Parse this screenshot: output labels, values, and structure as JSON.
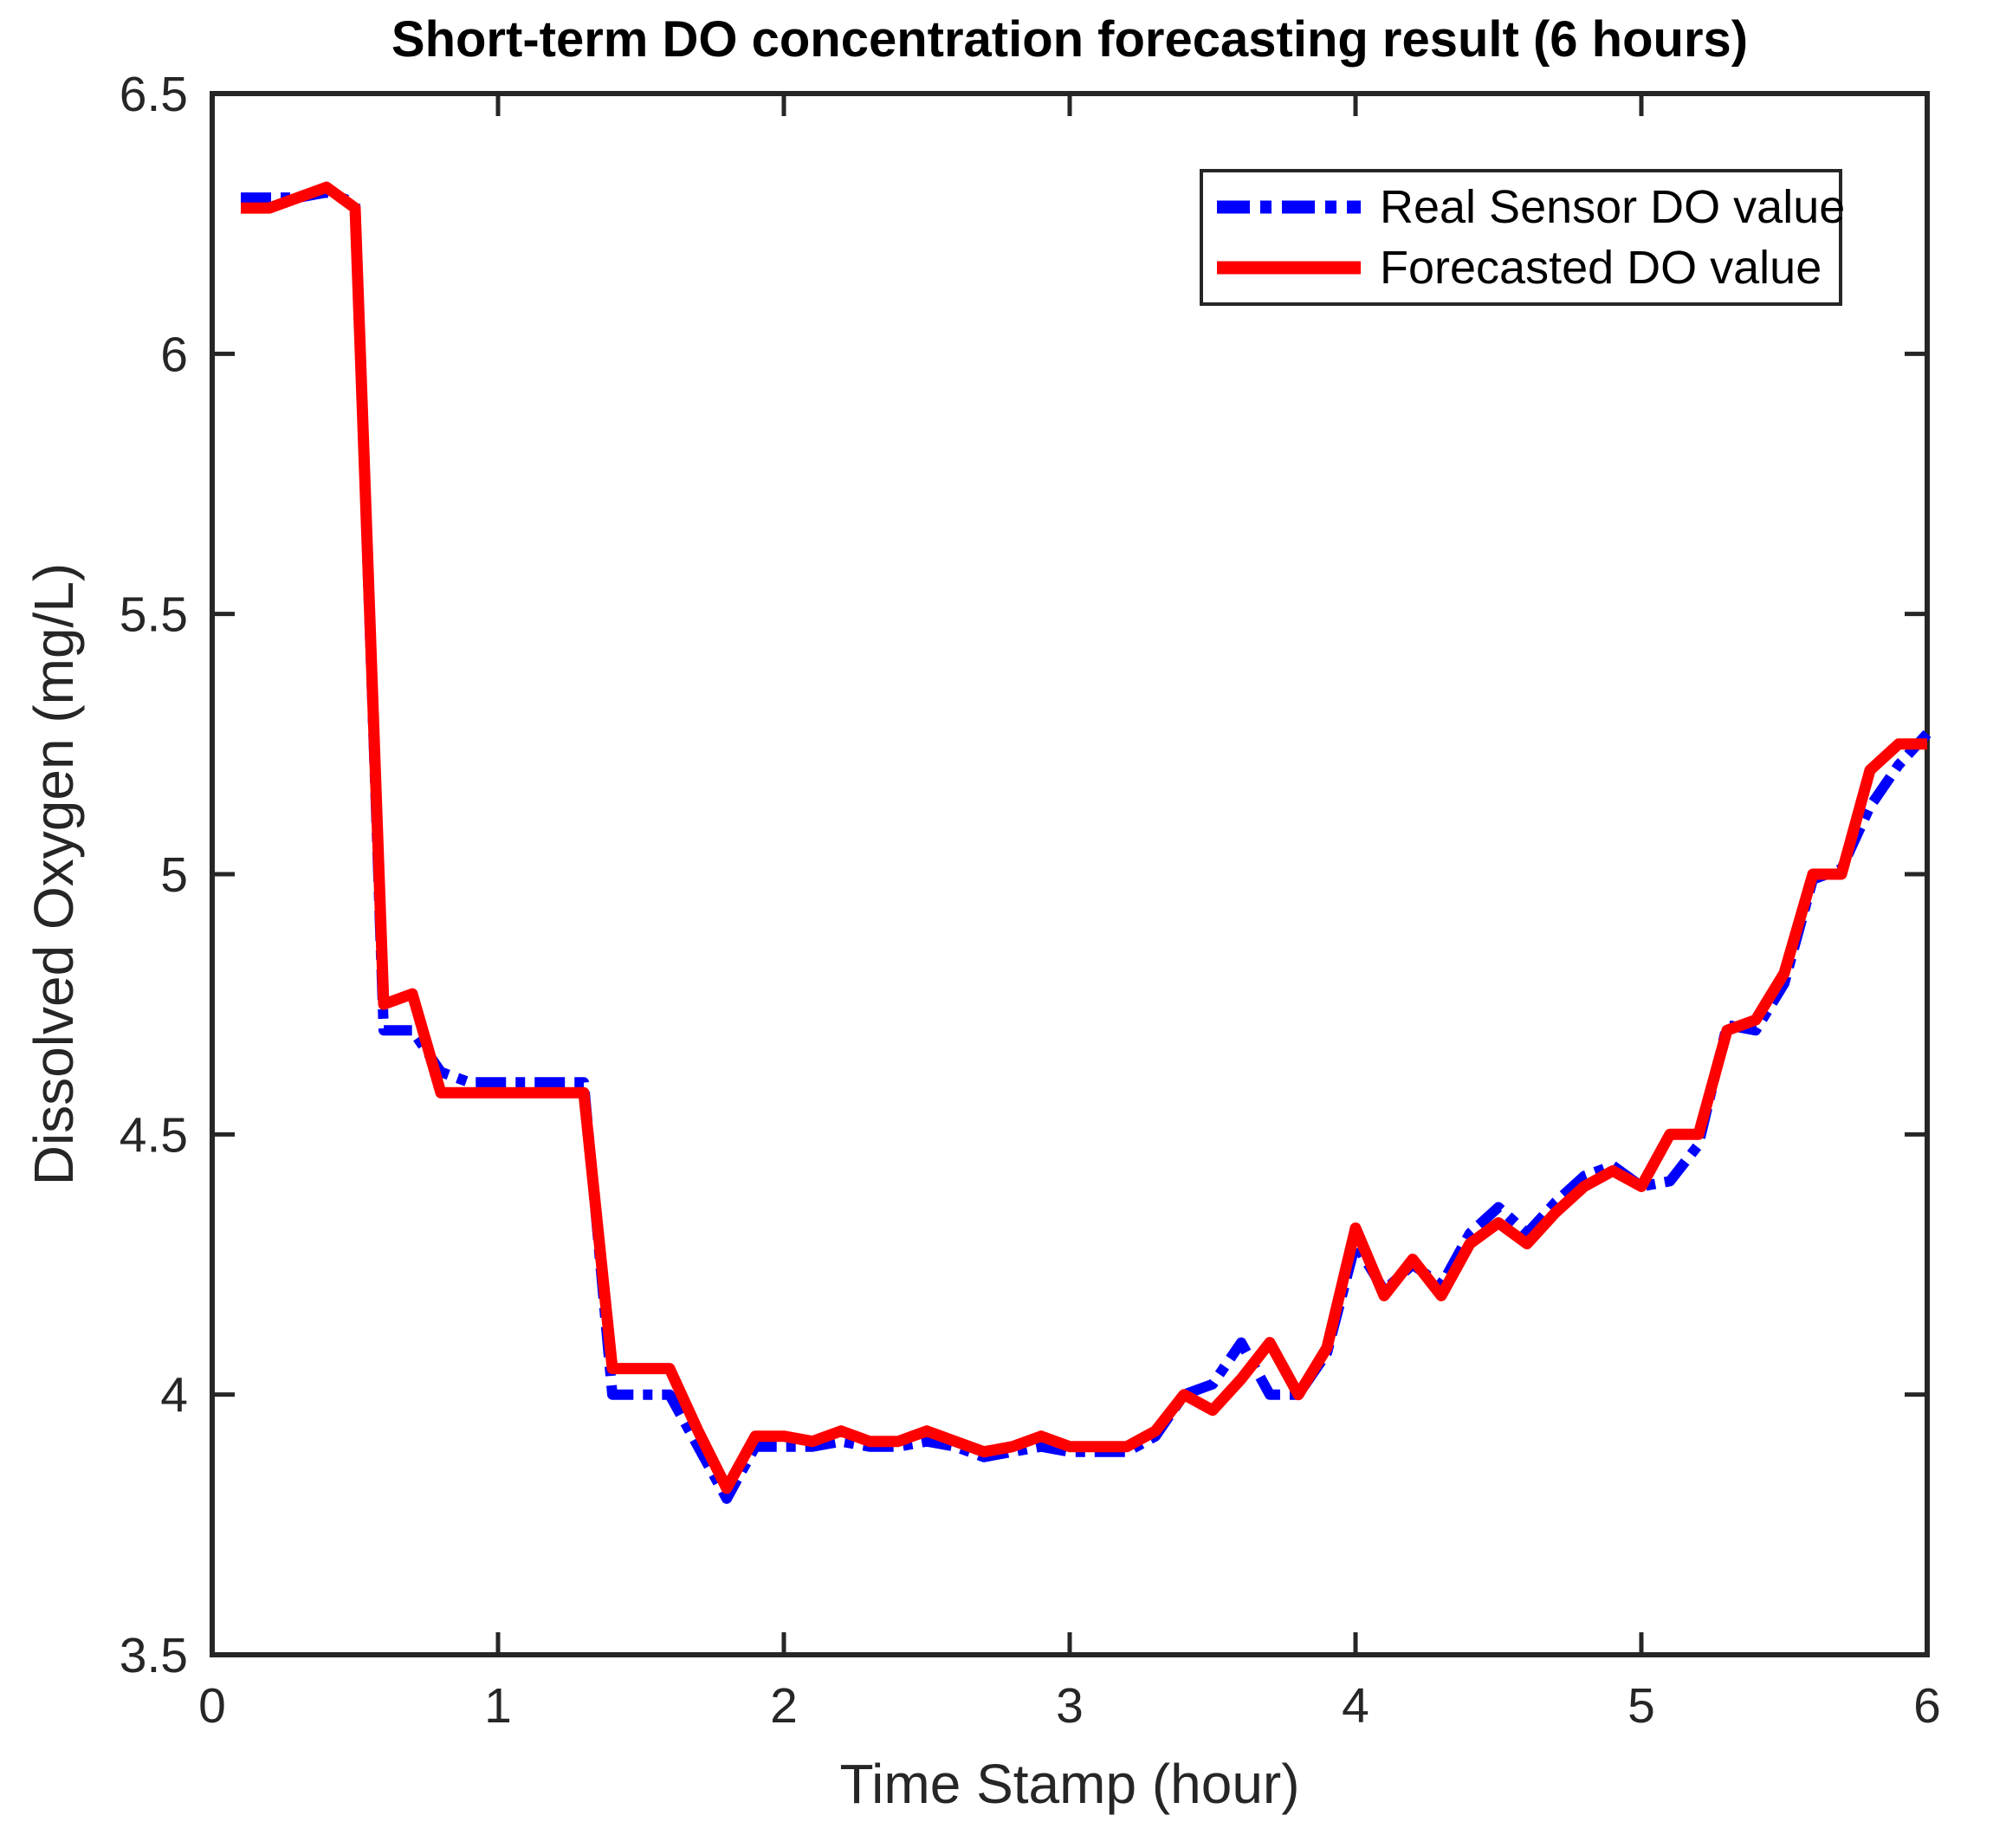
{
  "title": "Short-term DO concentration forecasting result (6 hours)",
  "x_axis": {
    "label": "Time Stamp (hour)",
    "ticks": [
      "0",
      "1",
      "2",
      "3",
      "4",
      "5",
      "6"
    ]
  },
  "y_axis": {
    "label": "Dissolved Oxygen (mg/L)",
    "ticks": [
      "3.5",
      "4",
      "4.5",
      "5",
      "5.5",
      "6",
      "6.5"
    ]
  },
  "legend": {
    "items": [
      {
        "label": "Real Sensor DO value",
        "color": "#0000ff",
        "style": "dash-dot"
      },
      {
        "label": "Forecasted DO value",
        "color": "#ff0000",
        "style": "solid"
      }
    ]
  },
  "colors": {
    "axis": "#262626",
    "background": "#ffffff",
    "real_series": "#0000ff",
    "forecast_series": "#ff0000"
  },
  "chart_data": {
    "type": "line",
    "title": "Short-term DO concentration forecasting result (6 hours)",
    "xlabel": "Time Stamp (hour)",
    "ylabel": "Dissolved Oxygen (mg/L)",
    "xlim": [
      0,
      6
    ],
    "ylim": [
      3.5,
      6.5
    ],
    "x_ticks": [
      0,
      1,
      2,
      3,
      4,
      5,
      6
    ],
    "y_ticks": [
      3.5,
      4,
      4.5,
      5,
      5.5,
      6,
      6.5
    ],
    "grid": false,
    "legend_position": "upper right",
    "x": [
      0.1,
      0.2,
      0.3,
      0.4,
      0.5,
      0.6,
      0.7,
      0.8,
      0.9,
      1.0,
      1.1,
      1.2,
      1.3,
      1.4,
      1.5,
      1.6,
      1.7,
      1.8,
      1.9,
      2.0,
      2.1,
      2.2,
      2.3,
      2.4,
      2.5,
      2.6,
      2.7,
      2.8,
      2.9,
      3.0,
      3.1,
      3.2,
      3.3,
      3.4,
      3.5,
      3.6,
      3.7,
      3.8,
      3.9,
      4.0,
      4.1,
      4.2,
      4.3,
      4.4,
      4.5,
      4.6,
      4.7,
      4.8,
      4.9,
      5.0,
      5.1,
      5.2,
      5.3,
      5.4,
      5.5,
      5.6,
      5.7,
      5.8,
      5.9,
      6.0
    ],
    "series": [
      {
        "name": "Real Sensor DO value",
        "color": "#0000ff",
        "line_style": "dash-dot",
        "values": [
          6.3,
          6.3,
          6.3,
          6.31,
          6.29,
          4.7,
          4.7,
          4.62,
          4.6,
          4.6,
          4.6,
          4.6,
          4.6,
          4.0,
          4.0,
          4.0,
          3.9,
          3.8,
          3.9,
          3.9,
          3.9,
          3.91,
          3.9,
          3.9,
          3.91,
          3.9,
          3.88,
          3.89,
          3.9,
          3.89,
          3.89,
          3.89,
          3.92,
          4.0,
          4.02,
          4.1,
          4.0,
          4.0,
          4.08,
          4.29,
          4.2,
          4.25,
          4.21,
          4.31,
          4.36,
          4.31,
          4.37,
          4.42,
          4.44,
          4.4,
          4.41,
          4.48,
          4.71,
          4.7,
          4.79,
          4.99,
          5.01,
          5.13,
          5.21,
          5.27
        ]
      },
      {
        "name": "Forecasted DO value",
        "color": "#ff0000",
        "line_style": "solid",
        "values": [
          6.28,
          6.28,
          6.3,
          6.32,
          6.28,
          4.75,
          4.77,
          4.58,
          4.58,
          4.58,
          4.58,
          4.58,
          4.58,
          4.05,
          4.05,
          4.05,
          3.93,
          3.82,
          3.92,
          3.92,
          3.91,
          3.93,
          3.91,
          3.91,
          3.93,
          3.91,
          3.89,
          3.9,
          3.92,
          3.9,
          3.9,
          3.9,
          3.93,
          4.0,
          3.97,
          4.03,
          4.1,
          4.0,
          4.09,
          4.32,
          4.19,
          4.26,
          4.19,
          4.29,
          4.33,
          4.29,
          4.35,
          4.4,
          4.43,
          4.4,
          4.5,
          4.5,
          4.7,
          4.72,
          4.81,
          5.0,
          5.0,
          5.2,
          5.25,
          5.25
        ]
      }
    ]
  }
}
